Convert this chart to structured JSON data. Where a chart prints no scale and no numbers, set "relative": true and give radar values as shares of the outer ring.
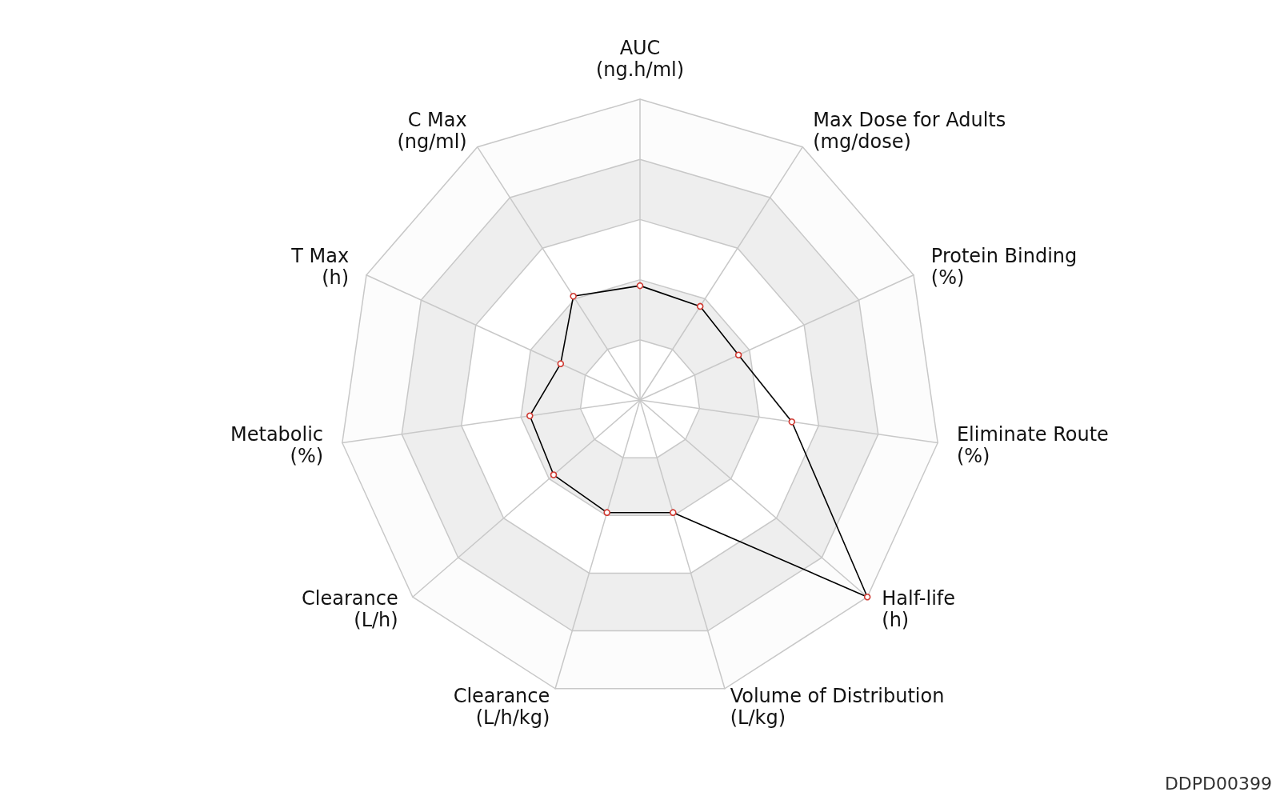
{
  "chart_data": {
    "type": "radar",
    "relative": true,
    "marker": "circle",
    "categories": [
      "AUC\n(ng.h/ml)",
      "Max Dose for Adults\n(mg/dose)",
      "Protein Binding\n(%)",
      "Eliminate Route\n(%)",
      "Half-life\n(h)",
      "Volume of Distribution\n(L/kg)",
      "Clearance\n(L/h/kg)",
      "Clearance\n(L/h)",
      "Metabolic\n(%)",
      "T Max\n(h)",
      "C Max\n(ng/ml)"
    ],
    "series": [
      {
        "color": "#000000",
        "values": [
          0.38,
          0.37,
          0.36,
          0.51,
          1,
          0.39,
          0.39,
          0.38,
          0.37,
          0.29,
          0.41
        ]
      }
    ],
    "annotations": [
      "DDPD00399"
    ]
  }
}
